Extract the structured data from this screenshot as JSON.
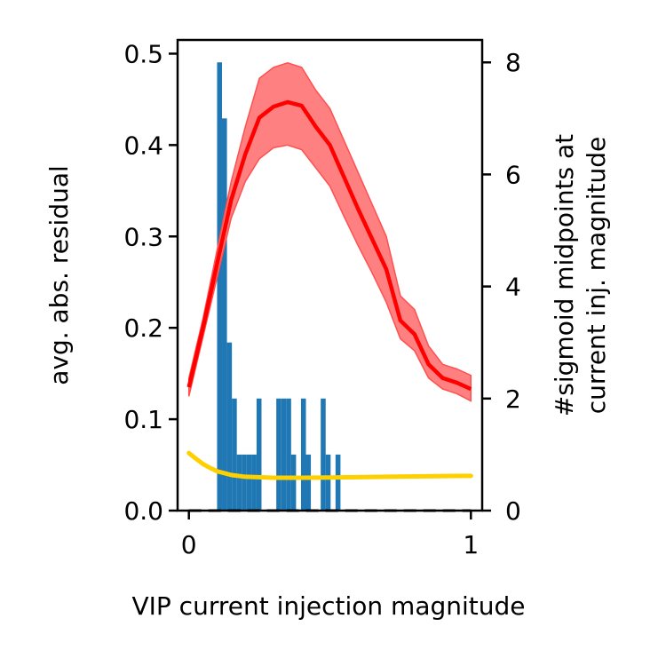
{
  "chart_data": {
    "type": "line",
    "xlabel": "VIP current injection magnitude",
    "ylabel": "avg. abs. residual",
    "y2label_line1": "#sigmoid midpoints at",
    "y2label_line2": "current inj. magnitude",
    "xlim": [
      -0.04,
      1.04
    ],
    "ylim": [
      0,
      0.515
    ],
    "y2lim": [
      0,
      8.4
    ],
    "x_ticks": [
      0,
      1
    ],
    "x_tick_labels": [
      "0",
      "1"
    ],
    "y_ticks": [
      0.0,
      0.1,
      0.2,
      0.3,
      0.4,
      0.5
    ],
    "y_tick_labels": [
      "0.0",
      "0.1",
      "0.2",
      "0.3",
      "0.4",
      "0.5"
    ],
    "y2_ticks": [
      0,
      2,
      4,
      6,
      8
    ],
    "y2_tick_labels": [
      "0",
      "2",
      "4",
      "6",
      "8"
    ],
    "grid": false,
    "colors": {
      "residual_line": "#ff0000",
      "residual_band": "#ff8080",
      "baseline": "#ffd000",
      "histogram": "#1f77b4",
      "dashed": "#000000"
    },
    "series": [
      {
        "axis": "left",
        "style": "line-with-band",
        "x": [
          0.0,
          0.05,
          0.1,
          0.15,
          0.2,
          0.25,
          0.3,
          0.35,
          0.4,
          0.45,
          0.5,
          0.55,
          0.6,
          0.65,
          0.7,
          0.75,
          0.8,
          0.85,
          0.9,
          0.95,
          1.0
        ],
        "y": [
          0.135,
          0.2,
          0.27,
          0.34,
          0.39,
          0.43,
          0.442,
          0.447,
          0.443,
          0.42,
          0.4,
          0.365,
          0.33,
          0.297,
          0.264,
          0.208,
          0.193,
          0.16,
          0.145,
          0.14,
          0.133
        ],
        "lower": [
          0.125,
          0.19,
          0.255,
          0.32,
          0.36,
          0.385,
          0.397,
          0.4,
          0.395,
          0.375,
          0.355,
          0.322,
          0.29,
          0.26,
          0.228,
          0.188,
          0.175,
          0.145,
          0.133,
          0.128,
          0.12
        ],
        "upper": [
          0.145,
          0.21,
          0.285,
          0.36,
          0.42,
          0.473,
          0.485,
          0.49,
          0.485,
          0.46,
          0.44,
          0.405,
          0.37,
          0.335,
          0.3,
          0.235,
          0.22,
          0.18,
          0.16,
          0.155,
          0.148
        ]
      },
      {
        "axis": "left",
        "style": "line",
        "x": [
          0.0,
          0.02,
          0.05,
          0.08,
          0.1,
          0.15,
          0.2,
          0.3,
          0.4,
          0.5,
          0.6,
          0.7,
          0.8,
          0.9,
          1.0
        ],
        "y": [
          0.063,
          0.058,
          0.051,
          0.046,
          0.043,
          0.039,
          0.037,
          0.036,
          0.036,
          0.0362,
          0.0365,
          0.037,
          0.0374,
          0.0378,
          0.038
        ]
      },
      {
        "axis": "left",
        "style": "dashed",
        "x": [
          0.0,
          1.0
        ],
        "y": [
          0.0,
          0.0
        ]
      },
      {
        "axis": "right",
        "style": "histogram",
        "bin_width": 0.0175,
        "x": [
          0.1,
          0.1175,
          0.135,
          0.1525,
          0.17,
          0.1875,
          0.205,
          0.2225,
          0.24,
          0.2575,
          0.275,
          0.2925,
          0.31,
          0.3275,
          0.345,
          0.3625,
          0.38,
          0.3975,
          0.415,
          0.4325,
          0.45,
          0.4675,
          0.485,
          0.5025,
          0.52,
          0.5375
        ],
        "y": [
          8,
          7,
          3,
          2,
          1,
          1,
          1,
          1,
          2,
          0,
          0,
          0,
          2,
          2,
          2,
          1,
          0,
          2,
          1,
          0,
          0,
          2,
          1,
          0,
          1,
          0
        ]
      }
    ]
  }
}
